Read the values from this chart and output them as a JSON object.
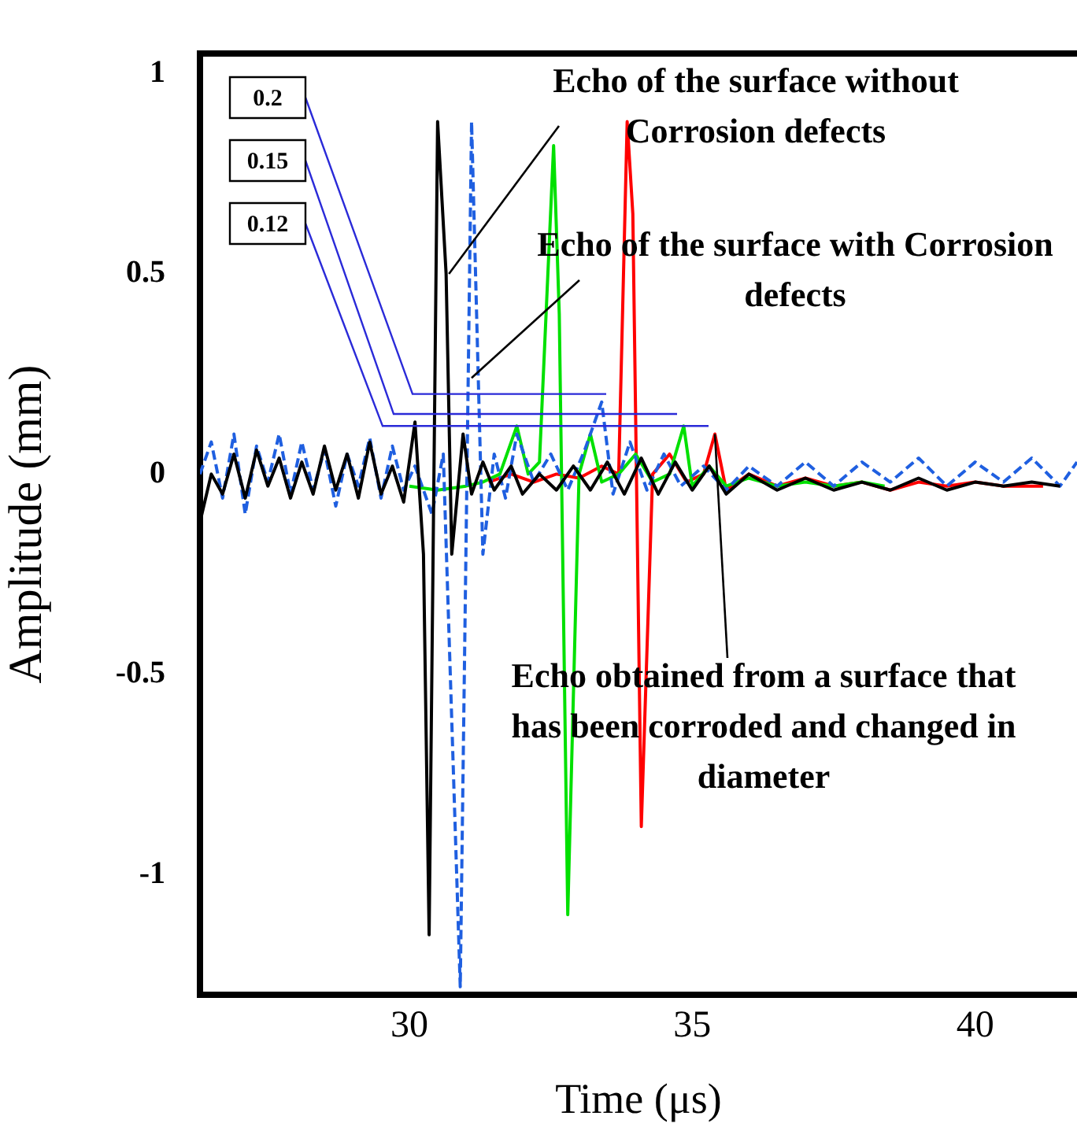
{
  "chart_data": {
    "type": "line",
    "xlabel": "Time (μs)",
    "ylabel": "Amplitude (mm)",
    "xlim": [
      26.3,
      41.8
    ],
    "xticks": [
      30,
      35,
      40
    ],
    "ylim": [
      -1.3,
      1.05
    ],
    "yticks": [
      -1,
      -0.5,
      0,
      0.5,
      1
    ],
    "grid": false,
    "legend": false,
    "marker": "none",
    "series": [
      {
        "color": "#000000",
        "line_style": "solid",
        "x": [
          26.3,
          26.5,
          26.7,
          26.9,
          27.1,
          27.3,
          27.5,
          27.7,
          27.9,
          28.1,
          28.3,
          28.5,
          28.7,
          28.9,
          29.1,
          29.3,
          29.5,
          29.7,
          29.9,
          30.1,
          30.25,
          30.35,
          30.5,
          30.65,
          30.75,
          30.95,
          31.1,
          31.3,
          31.5,
          31.8,
          32.0,
          32.3,
          32.6,
          32.9,
          33.2,
          33.5,
          33.8,
          34.1,
          34.4,
          34.7,
          35.0,
          35.3,
          35.6,
          36,
          36.5,
          37,
          37.5,
          38,
          38.5,
          39,
          39.5,
          40,
          40.5,
          41,
          41.5
        ],
        "values": [
          -0.12,
          0.0,
          -0.05,
          0.05,
          -0.06,
          0.06,
          -0.03,
          0.04,
          -0.06,
          0.03,
          -0.05,
          0.07,
          -0.04,
          0.05,
          -0.06,
          0.08,
          -0.05,
          0.02,
          -0.07,
          0.13,
          -0.2,
          -1.15,
          0.88,
          0.5,
          -0.2,
          0.1,
          -0.05,
          0.03,
          -0.04,
          0.02,
          -0.05,
          0.0,
          -0.04,
          0.02,
          -0.04,
          0.03,
          -0.05,
          0.04,
          -0.05,
          0.03,
          -0.04,
          0.02,
          -0.05,
          0.0,
          -0.04,
          -0.01,
          -0.04,
          -0.02,
          -0.04,
          -0.01,
          -0.04,
          -0.02,
          -0.03,
          -0.02,
          -0.03
        ]
      },
      {
        "color": "#1f5fe0",
        "line_style": "dashed",
        "x": [
          26.3,
          26.5,
          26.7,
          26.9,
          27.1,
          27.3,
          27.5,
          27.7,
          27.9,
          28.1,
          28.3,
          28.5,
          28.7,
          28.9,
          29.1,
          29.3,
          29.5,
          29.7,
          29.9,
          30.1,
          30.4,
          30.6,
          30.9,
          31.1,
          31.3,
          31.5,
          31.7,
          31.9,
          32.2,
          32.5,
          32.8,
          33.1,
          33.4,
          33.6,
          33.9,
          34.2,
          34.5,
          34.8,
          35.2,
          35.6,
          36,
          36.5,
          37,
          37.5,
          38,
          38.5,
          39,
          39.5,
          40,
          40.5,
          41,
          41.5,
          41.8
        ],
        "values": [
          0.0,
          0.08,
          -0.06,
          0.1,
          -0.1,
          0.07,
          -0.02,
          0.1,
          -0.05,
          0.08,
          -0.04,
          0.06,
          -0.08,
          0.05,
          -0.03,
          0.09,
          -0.06,
          0.07,
          -0.04,
          0.02,
          -0.1,
          0.05,
          -1.28,
          0.88,
          -0.2,
          0.05,
          -0.06,
          0.1,
          -0.02,
          0.05,
          -0.04,
          0.06,
          0.18,
          -0.05,
          0.08,
          -0.04,
          0.05,
          -0.03,
          0.02,
          -0.04,
          0.02,
          -0.03,
          0.03,
          -0.03,
          0.03,
          -0.02,
          0.04,
          -0.03,
          0.03,
          -0.02,
          0.04,
          -0.03,
          0.03
        ]
      },
      {
        "color": "#00e000",
        "line_style": "solid",
        "x": [
          30.0,
          30.5,
          31.0,
          31.3,
          31.6,
          31.9,
          32.1,
          32.3,
          32.55,
          32.65,
          32.8,
          33.0,
          33.2,
          33.4,
          33.7,
          34.0,
          34.3,
          34.6,
          34.85,
          35.0,
          35.3,
          35.6,
          36,
          36.5,
          37,
          37.5,
          38,
          38.4
        ],
        "values": [
          -0.03,
          -0.04,
          -0.03,
          -0.02,
          0.0,
          0.12,
          0.0,
          0.03,
          0.82,
          0.4,
          -1.1,
          0.0,
          0.1,
          -0.02,
          0.0,
          0.05,
          -0.02,
          0.0,
          0.12,
          -0.03,
          0.02,
          -0.03,
          -0.01,
          -0.03,
          -0.02,
          -0.03,
          -0.02,
          -0.03
        ]
      },
      {
        "color": "#ff0000",
        "line_style": "solid",
        "x": [
          31.4,
          31.8,
          32.2,
          32.6,
          33.0,
          33.4,
          33.7,
          33.85,
          33.95,
          34.1,
          34.3,
          34.6,
          34.9,
          35.2,
          35.4,
          35.6,
          36,
          36.5,
          37,
          37.5,
          38,
          38.5,
          39,
          39.5,
          40,
          40.5,
          41.2
        ],
        "values": [
          -0.02,
          0.0,
          -0.02,
          0.0,
          -0.01,
          0.02,
          0.0,
          0.88,
          0.65,
          -0.88,
          0.0,
          0.05,
          -0.02,
          0.0,
          0.1,
          -0.04,
          0.0,
          -0.03,
          -0.01,
          -0.03,
          -0.02,
          -0.04,
          -0.02,
          -0.03,
          -0.02,
          -0.03,
          -0.03
        ]
      }
    ],
    "annotations": [
      {
        "text": "Echo of the surface without Corrosion defects",
        "x": 30.7,
        "y": 0.5
      },
      {
        "text": "Echo of the surface with Corrosion defects",
        "x": 31.1,
        "y": 0.24
      },
      {
        "text": "Echo obtained from a surface that has been corroded and changed in diameter",
        "x": 35.4,
        "y": 0.1
      },
      "0.2",
      "0.15",
      "0.12"
    ],
    "ref_lines": [
      {
        "axis": "y",
        "value": 0.2,
        "color": "#2a2ad8"
      },
      {
        "axis": "y",
        "value": 0.15,
        "color": "#2a2ad8"
      },
      {
        "axis": "y",
        "value": 0.12,
        "color": "#2a2ad8"
      }
    ]
  }
}
